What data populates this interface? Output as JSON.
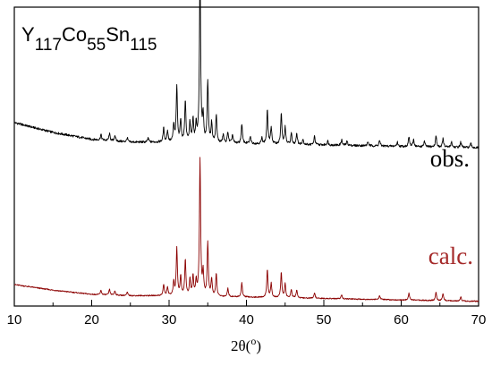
{
  "chart_data": {
    "type": "line",
    "title": "",
    "xlabel": "2θ(°)",
    "xlabel_base": "2θ(",
    "xlabel_sup": "o",
    "xlabel_close": ")",
    "ylabel": "",
    "xlim": [
      10,
      70
    ],
    "xticks": [
      10,
      20,
      30,
      40,
      50,
      60,
      70
    ],
    "grid": false,
    "y_axis_ticks_shown": false,
    "formula": {
      "parts": [
        {
          "text": "Y",
          "sub": "117"
        },
        {
          "text": "Co",
          "sub": "55"
        },
        {
          "text": "Sn",
          "sub": "115"
        }
      ]
    },
    "series": [
      {
        "name": "obs.",
        "color": "#000000",
        "label_color": "#000000",
        "baseline_offset": 0.58,
        "background": [
          [
            10,
            0.0
          ],
          [
            15,
            -0.035
          ],
          [
            20,
            -0.06
          ],
          [
            25,
            -0.07
          ],
          [
            30,
            -0.07
          ],
          [
            40,
            -0.075
          ],
          [
            50,
            -0.08
          ],
          [
            60,
            -0.085
          ],
          [
            70,
            -0.09
          ]
        ],
        "peaks": [
          [
            21.2,
            0.02
          ],
          [
            22.3,
            0.025
          ],
          [
            23.0,
            0.02
          ],
          [
            24.6,
            0.015
          ],
          [
            27.3,
            0.015
          ],
          [
            29.3,
            0.05
          ],
          [
            29.8,
            0.04
          ],
          [
            30.6,
            0.06
          ],
          [
            31.0,
            0.2
          ],
          [
            31.5,
            0.08
          ],
          [
            32.1,
            0.15
          ],
          [
            32.7,
            0.07
          ],
          [
            33.1,
            0.08
          ],
          [
            33.5,
            0.06
          ],
          [
            34.0,
            0.62
          ],
          [
            34.4,
            0.09
          ],
          [
            35.0,
            0.22
          ],
          [
            35.5,
            0.07
          ],
          [
            36.1,
            0.1
          ],
          [
            37.0,
            0.03
          ],
          [
            37.6,
            0.04
          ],
          [
            38.2,
            0.03
          ],
          [
            39.4,
            0.07
          ],
          [
            40.5,
            0.025
          ],
          [
            42.0,
            0.02
          ],
          [
            42.7,
            0.12
          ],
          [
            43.2,
            0.06
          ],
          [
            44.5,
            0.11
          ],
          [
            45.0,
            0.06
          ],
          [
            45.8,
            0.04
          ],
          [
            46.5,
            0.04
          ],
          [
            47.3,
            0.02
          ],
          [
            48.8,
            0.03
          ],
          [
            50.5,
            0.015
          ],
          [
            52.3,
            0.02
          ],
          [
            53.0,
            0.015
          ],
          [
            55.7,
            0.015
          ],
          [
            57.2,
            0.02
          ],
          [
            59.5,
            0.015
          ],
          [
            61.0,
            0.035
          ],
          [
            61.6,
            0.025
          ],
          [
            63.0,
            0.02
          ],
          [
            64.5,
            0.04
          ],
          [
            65.4,
            0.03
          ],
          [
            66.5,
            0.02
          ],
          [
            67.7,
            0.02
          ],
          [
            69.0,
            0.015
          ]
        ]
      },
      {
        "name": "calc.",
        "color": "#8b0000",
        "label_color": "#a52a2a",
        "baseline_offset": 0.0,
        "background": [
          [
            10,
            0.0
          ],
          [
            15,
            -0.02
          ],
          [
            20,
            -0.035
          ],
          [
            25,
            -0.04
          ],
          [
            30,
            -0.04
          ],
          [
            40,
            -0.045
          ],
          [
            50,
            -0.05
          ],
          [
            60,
            -0.055
          ],
          [
            70,
            -0.06
          ]
        ],
        "peaks": [
          [
            21.2,
            0.015
          ],
          [
            22.3,
            0.02
          ],
          [
            23.0,
            0.015
          ],
          [
            24.6,
            0.012
          ],
          [
            29.3,
            0.04
          ],
          [
            29.8,
            0.03
          ],
          [
            30.6,
            0.05
          ],
          [
            31.0,
            0.17
          ],
          [
            31.5,
            0.07
          ],
          [
            32.1,
            0.13
          ],
          [
            32.7,
            0.06
          ],
          [
            33.1,
            0.07
          ],
          [
            33.5,
            0.05
          ],
          [
            34.0,
            0.49
          ],
          [
            34.4,
            0.08
          ],
          [
            35.0,
            0.19
          ],
          [
            35.5,
            0.06
          ],
          [
            36.1,
            0.08
          ],
          [
            37.6,
            0.03
          ],
          [
            39.4,
            0.05
          ],
          [
            42.7,
            0.1
          ],
          [
            43.2,
            0.05
          ],
          [
            44.5,
            0.09
          ],
          [
            45.0,
            0.05
          ],
          [
            45.8,
            0.03
          ],
          [
            46.5,
            0.03
          ],
          [
            48.8,
            0.02
          ],
          [
            52.3,
            0.015
          ],
          [
            57.2,
            0.015
          ],
          [
            61.0,
            0.025
          ],
          [
            64.5,
            0.03
          ],
          [
            65.4,
            0.025
          ],
          [
            67.7,
            0.015
          ]
        ]
      }
    ]
  }
}
